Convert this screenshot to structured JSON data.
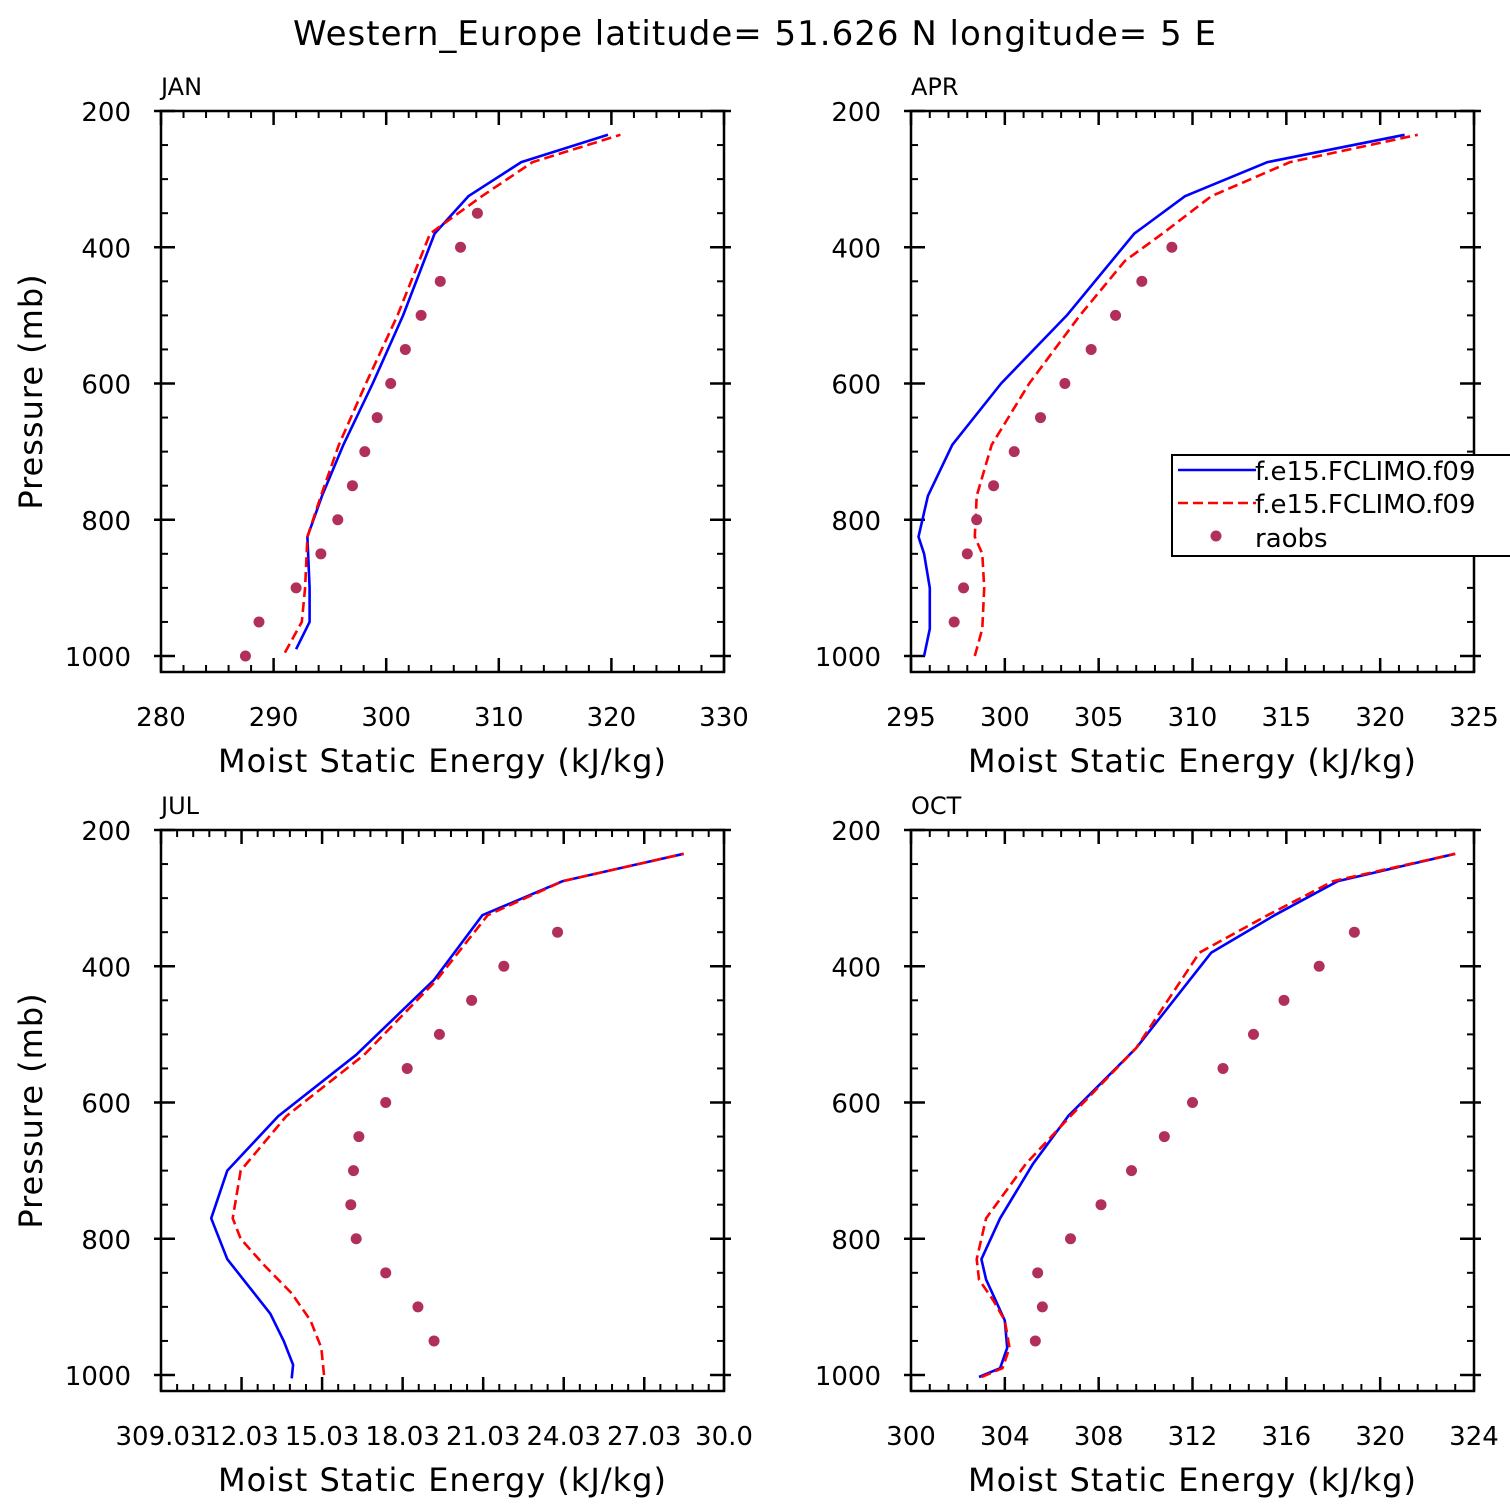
{
  "figure": {
    "title": "Western_Europe  latitude= 51.626 N longitude= 5 E"
  },
  "legend": {
    "entries": [
      {
        "label": "f.e15.FCLIMO.f09",
        "style": "solid",
        "color": "#0000ff"
      },
      {
        "label": "f.e15.FCLIMO.f09",
        "style": "dashed",
        "color": "#ff0000"
      },
      {
        "label": "raobs",
        "style": "marker",
        "color": "#b0305a"
      }
    ]
  },
  "chart_data": [
    {
      "type": "line",
      "month": "JAN",
      "xlabel": "Moist Static Energy (kJ/kg)",
      "ylabel": "Pressure (mb)",
      "xlim": [
        280,
        330
      ],
      "ylim": [
        1000,
        200
      ],
      "xticks": [
        280,
        290,
        300,
        310,
        320,
        330
      ],
      "xticklabels": [
        "280",
        "290",
        "300",
        "310",
        "320",
        "330"
      ],
      "xminor": 2,
      "yticks": [
        200,
        400,
        600,
        800,
        1000
      ],
      "yticklabels": [
        "200",
        "400",
        "600",
        "800",
        "1000"
      ],
      "yminor": 50,
      "series": [
        {
          "name": "f.e15.FCLIMO.f09",
          "style": "solid",
          "color": "#0000ff",
          "x": [
            292.0,
            293.2,
            293.2,
            293.0,
            294.3,
            296.2,
            298.8,
            301.5,
            304.3,
            307.3,
            312.0,
            319.7
          ],
          "y": [
            990,
            950,
            900,
            825,
            765,
            690,
            600,
            500,
            380,
            325,
            275,
            235
          ]
        },
        {
          "name": "f.e15.FCLIMO.f09",
          "style": "dashed",
          "color": "#ff0000",
          "x": [
            291.0,
            292.5,
            292.8,
            293.0,
            294.2,
            295.8,
            298.2,
            301.0,
            303.9,
            308.5,
            313.0,
            320.8
          ],
          "y": [
            995,
            950,
            900,
            825,
            765,
            690,
            600,
            500,
            380,
            325,
            275,
            235
          ]
        },
        {
          "name": "raobs",
          "style": "marker",
          "color": "#b0305a",
          "x": [
            287.5,
            288.7,
            292.0,
            294.2,
            295.7,
            297.0,
            298.1,
            299.2,
            300.4,
            301.7,
            303.1,
            304.8,
            306.6,
            308.1
          ],
          "y": [
            1000,
            950,
            900,
            850,
            800,
            750,
            700,
            650,
            600,
            550,
            500,
            450,
            400,
            350
          ]
        }
      ]
    },
    {
      "type": "line",
      "month": "APR",
      "xlabel": "Moist Static Energy (kJ/kg)",
      "ylabel": "",
      "xlim": [
        295,
        325
      ],
      "ylim": [
        1000,
        200
      ],
      "xticks": [
        295,
        300,
        305,
        310,
        315,
        320,
        325
      ],
      "xticklabels": [
        "295",
        "300",
        "305",
        "310",
        "315",
        "320",
        "325"
      ],
      "xminor": 1,
      "yticks": [
        200,
        400,
        600,
        800,
        1000
      ],
      "yticklabels": [
        "200",
        "400",
        "600",
        "800",
        "1000"
      ],
      "yminor": 50,
      "series": [
        {
          "name": "f.e15.FCLIMO.f09",
          "style": "solid",
          "color": "#0000ff",
          "x": [
            295.7,
            296.0,
            296.0,
            295.7,
            295.4,
            295.9,
            297.2,
            299.8,
            303.3,
            306.9,
            309.6,
            314.0,
            321.3
          ],
          "y": [
            1000,
            960,
            900,
            850,
            825,
            765,
            690,
            600,
            500,
            380,
            325,
            275,
            235
          ]
        },
        {
          "name": "f.e15.FCLIMO.f09",
          "style": "dashed",
          "color": "#ff0000",
          "x": [
            298.4,
            298.8,
            298.9,
            298.8,
            298.4,
            298.5,
            299.3,
            301.3,
            304.0,
            306.4,
            308.4,
            311.0,
            315.2,
            322.0
          ],
          "y": [
            1000,
            960,
            900,
            850,
            825,
            765,
            690,
            600,
            500,
            420,
            380,
            325,
            275,
            235
          ]
        },
        {
          "name": "raobs",
          "style": "marker",
          "color": "#b0305a",
          "x": [
            297.3,
            297.8,
            298.0,
            298.5,
            299.4,
            300.5,
            301.9,
            303.2,
            304.6,
            305.9,
            307.3,
            308.9
          ],
          "y": [
            950,
            900,
            850,
            800,
            750,
            700,
            650,
            600,
            550,
            500,
            450,
            400
          ]
        }
      ]
    },
    {
      "type": "line",
      "month": "JUL",
      "xlabel": "Moist Static Energy (kJ/kg)",
      "ylabel": "Pressure (mb)",
      "xlim": [
        309.03,
        330.0
      ],
      "ylim": [
        1000,
        200
      ],
      "xticks": [
        309.03,
        312.03,
        315.03,
        318.03,
        321.03,
        324.03,
        327.03,
        330.0
      ],
      "xticklabels": [
        "309.03",
        "12.03",
        "15.03",
        "18.03",
        "21.03",
        "24.03",
        "27.03",
        "30.0"
      ],
      "xminor": 0.6,
      "yticks": [
        200,
        400,
        600,
        800,
        1000
      ],
      "yticklabels": [
        "200",
        "400",
        "600",
        "800",
        "1000"
      ],
      "yminor": 50,
      "series": [
        {
          "name": "f.e15.FCLIMO.f09",
          "style": "solid",
          "color": "#0000ff",
          "x": [
            313.9,
            313.95,
            313.6,
            313.1,
            312.3,
            311.5,
            310.9,
            311.5,
            313.4,
            316.3,
            319.2,
            321.0,
            324.0,
            328.5
          ],
          "y": [
            1005,
            985,
            950,
            910,
            870,
            830,
            770,
            700,
            620,
            530,
            420,
            325,
            275,
            235
          ]
        },
        {
          "name": "f.e15.FCLIMO.f09",
          "style": "dashed",
          "color": "#ff0000",
          "x": [
            315.1,
            315.0,
            314.6,
            313.9,
            312.9,
            312.0,
            311.7,
            312.0,
            313.7,
            316.6,
            319.3,
            321.2,
            324.0,
            328.5
          ],
          "y": [
            1000,
            960,
            920,
            880,
            840,
            800,
            770,
            700,
            620,
            530,
            420,
            325,
            275,
            235
          ]
        },
        {
          "name": "raobs",
          "style": "marker",
          "color": "#b0305a",
          "x": [
            319.2,
            318.6,
            317.4,
            316.3,
            316.1,
            316.2,
            316.4,
            317.4,
            318.2,
            319.4,
            320.6,
            321.8,
            323.8
          ],
          "y": [
            950,
            900,
            850,
            800,
            750,
            700,
            650,
            600,
            550,
            500,
            450,
            400,
            350
          ]
        }
      ]
    },
    {
      "type": "line",
      "month": "OCT",
      "xlabel": "Moist Static Energy (kJ/kg)",
      "ylabel": "",
      "xlim": [
        300,
        324
      ],
      "ylim": [
        1000,
        200
      ],
      "xticks": [
        300,
        304,
        308,
        312,
        316,
        320,
        324
      ],
      "xticklabels": [
        "300",
        "304",
        "308",
        "312",
        "316",
        "320",
        "324"
      ],
      "xminor": 0.8,
      "yticks": [
        200,
        400,
        600,
        800,
        1000
      ],
      "yticklabels": [
        "200",
        "400",
        "600",
        "800",
        "1000"
      ],
      "yminor": 50,
      "series": [
        {
          "name": "f.e15.FCLIMO.f09",
          "style": "solid",
          "color": "#0000ff",
          "x": [
            302.9,
            303.8,
            304.1,
            304.0,
            303.6,
            303.2,
            303.0,
            303.8,
            305.2,
            306.7,
            309.6,
            312.8,
            315.5,
            318.2,
            323.2
          ],
          "y": [
            1003,
            990,
            960,
            920,
            890,
            860,
            830,
            770,
            690,
            620,
            520,
            380,
            325,
            275,
            235
          ]
        },
        {
          "name": "f.e15.FCLIMO.f09",
          "style": "dashed",
          "color": "#ff0000",
          "x": [
            303.0,
            303.9,
            304.2,
            304.0,
            303.5,
            302.9,
            302.8,
            303.2,
            304.9,
            306.8,
            309.6,
            312.3,
            315.2,
            318.0,
            323.2
          ],
          "y": [
            1003,
            990,
            960,
            920,
            890,
            860,
            830,
            770,
            690,
            620,
            520,
            380,
            325,
            275,
            235
          ]
        },
        {
          "name": "raobs",
          "style": "marker",
          "color": "#b0305a",
          "x": [
            305.3,
            305.6,
            305.4,
            306.8,
            308.1,
            309.4,
            310.8,
            312.0,
            313.3,
            314.6,
            315.9,
            317.4,
            318.9
          ],
          "y": [
            950,
            900,
            850,
            800,
            750,
            700,
            650,
            600,
            550,
            500,
            450,
            400,
            350
          ]
        }
      ]
    }
  ]
}
